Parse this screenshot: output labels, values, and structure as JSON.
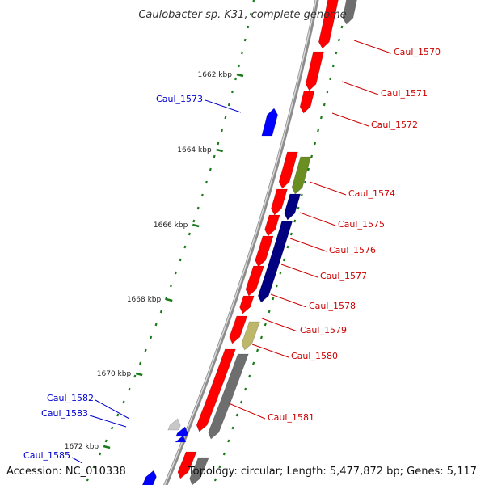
{
  "title": "Caulobacter sp. K31, complete genome",
  "accession": "Accession: NC_010338",
  "summary": "Topology: circular; Length: 5,477,872 bp; Genes: 5,117",
  "colors": {
    "backbone": "#8c8c8c",
    "forward_label": "#cc0000",
    "reverse_label": "#0000cc",
    "tick": "#1a7a1a",
    "red": "#ff0000",
    "blue": "#0000ff",
    "navy": "#000080",
    "olive": "#6b8e23",
    "khaki": "#bdb76b",
    "gray": "#6e6e6e",
    "silver": "#c8c8c8"
  },
  "ticks": [
    {
      "label": "1662 kbp"
    },
    {
      "label": "1664 kbp"
    },
    {
      "label": "1666 kbp"
    },
    {
      "label": "1668 kbp"
    },
    {
      "label": "1670 kbp"
    },
    {
      "label": "1672 kbp"
    }
  ],
  "labels": [
    {
      "text": "Caul_1570",
      "strand": "forward"
    },
    {
      "text": "Caul_1571",
      "strand": "forward"
    },
    {
      "text": "Caul_1572",
      "strand": "forward"
    },
    {
      "text": "Caul_1573",
      "strand": "reverse"
    },
    {
      "text": "Caul_1574",
      "strand": "forward"
    },
    {
      "text": "Caul_1575",
      "strand": "forward"
    },
    {
      "text": "Caul_1576",
      "strand": "forward"
    },
    {
      "text": "Caul_1577",
      "strand": "forward"
    },
    {
      "text": "Caul_1578",
      "strand": "forward"
    },
    {
      "text": "Caul_1579",
      "strand": "forward"
    },
    {
      "text": "Caul_1580",
      "strand": "forward"
    },
    {
      "text": "Caul_1581",
      "strand": "forward"
    },
    {
      "text": "Caul_1582",
      "strand": "reverse"
    },
    {
      "text": "Caul_1583",
      "strand": "reverse"
    },
    {
      "text": "Caul_1585",
      "strand": "reverse"
    }
  ]
}
